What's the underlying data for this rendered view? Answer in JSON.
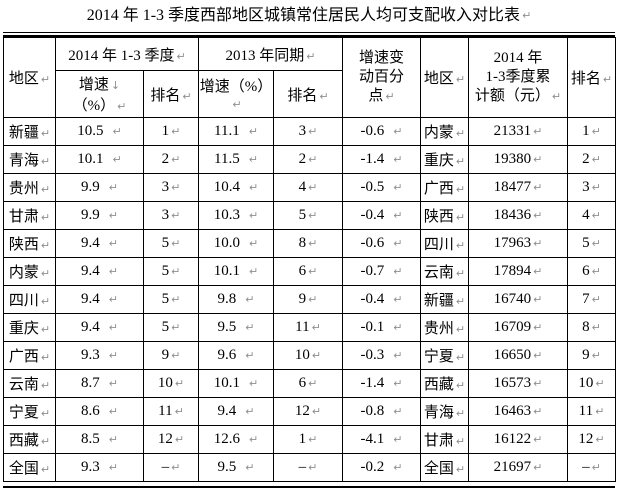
{
  "title": "2014 年 1-3 季度西部地区城镇常住居民人均可支配收入对比表",
  "marks": {
    "cell_end": "↵",
    "line_break": "↓"
  },
  "colors": {
    "text": "#000000",
    "border": "#000000",
    "formatting_mark": "#8f8f8f",
    "background": "#ffffff"
  },
  "table": {
    "headers": {
      "region": "地区",
      "group_2014": "2014 年 1-3 季度",
      "group_2013": "2013 年同期",
      "rate_2014_line1": "增速",
      "rate_2014_line2": "（%）",
      "rank_2014": "排名",
      "rate_2013": "增速（%）",
      "rank_2013": "排名",
      "change": "增速变\n动百分\n点",
      "region2": "地区",
      "amount": "2014 年\n1-3季度累\n计额（元）",
      "rank2": "排名"
    },
    "column_names": [
      "region",
      "rate-2014",
      "rank-2014",
      "rate-2013",
      "rank-2013",
      "change",
      "region-2",
      "amount-2014",
      "rank-amount"
    ],
    "rows": [
      {
        "cells": [
          "新疆",
          "10.5",
          "1",
          "11.1",
          "3",
          "-0.6",
          "内蒙",
          "21331",
          "1"
        ],
        "bold_left": false,
        "bold_right": false
      },
      {
        "cells": [
          "青海",
          "10.1",
          "2",
          "11.5",
          "2",
          "-1.4",
          "重庆",
          "19380",
          "2"
        ],
        "bold_left": false,
        "bold_right": false
      },
      {
        "cells": [
          "贵州",
          "9.9",
          "3",
          "10.4",
          "4",
          "-0.5",
          "广西",
          "18477",
          "3"
        ],
        "bold_left": false,
        "bold_right": false
      },
      {
        "cells": [
          "甘肃",
          "9.9",
          "3",
          "10.3",
          "5",
          "-0.4",
          "陕西",
          "18436",
          "4"
        ],
        "bold_left": false,
        "bold_right": false
      },
      {
        "cells": [
          "陕西",
          "9.4",
          "5",
          "10.0",
          "8",
          "-0.6",
          "四川",
          "17963",
          "5"
        ],
        "bold_left": false,
        "bold_right": false
      },
      {
        "cells": [
          "内蒙",
          "9.4",
          "5",
          "10.1",
          "6",
          "-0.7",
          "云南",
          "17894",
          "6"
        ],
        "bold_left": false,
        "bold_right": false
      },
      {
        "cells": [
          "四川",
          "9.4",
          "5",
          "9.8",
          "9",
          "-0.4",
          "新疆",
          "16740",
          "7"
        ],
        "bold_left": false,
        "bold_right": false
      },
      {
        "cells": [
          "重庆",
          "9.4",
          "5",
          "9.5",
          "11",
          "-0.1",
          "贵州",
          "16709",
          "8"
        ],
        "bold_left": false,
        "bold_right": false
      },
      {
        "cells": [
          "广西",
          "9.3",
          "9",
          "9.6",
          "10",
          "-0.3",
          "宁夏",
          "16650",
          "9"
        ],
        "bold_left": false,
        "bold_right": true
      },
      {
        "cells": [
          "云南",
          "8.7",
          "10",
          "10.1",
          "6",
          "-1.4",
          "西藏",
          "16573",
          "10"
        ],
        "bold_left": false,
        "bold_right": false
      },
      {
        "cells": [
          "宁夏",
          "8.6",
          "11",
          "9.4",
          "12",
          "-0.8",
          "青海",
          "16463",
          "11"
        ],
        "bold_left": true,
        "bold_right": false
      },
      {
        "cells": [
          "西藏",
          "8.5",
          "12",
          "12.6",
          "1",
          "-4.1",
          "甘肃",
          "16122",
          "12"
        ],
        "bold_left": false,
        "bold_right": false
      },
      {
        "cells": [
          "全国",
          "9.3",
          "–",
          "9.5",
          "–",
          "-0.2",
          "全国",
          "21697",
          "–"
        ],
        "bold_left": false,
        "bold_right": false
      }
    ]
  }
}
